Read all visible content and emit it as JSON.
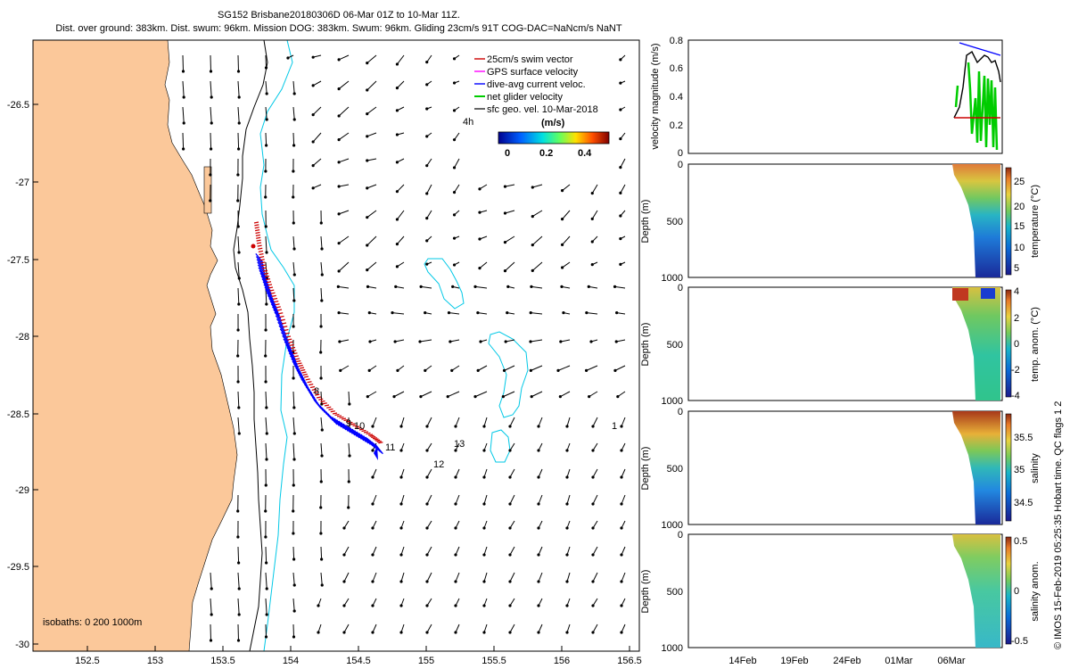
{
  "header": {
    "title_line1": "SG152 Brisbane20180306D 06-Mar 01Z to 10-Mar 11Z.",
    "title_line2": "Dist. over ground: 383km. Dist. swum: 96km. Mission DOG: 383km. Swum: 96km. Gliding 23cm/s 91T COG-DAC=NaNcm/s NaNT"
  },
  "map": {
    "lon_ticks": [
      "152.5",
      "153",
      "153.5",
      "154",
      "154.5",
      "155",
      "155.5",
      "156",
      "156.5"
    ],
    "lat_ticks": [
      "-26.5",
      "-27",
      "-27.5",
      "-28",
      "-28.5",
      "-29",
      "-29.5",
      "-30"
    ],
    "isobaths_label": "isobaths: 0   200  1000m",
    "legend": [
      {
        "label": "25cm/s swim vector",
        "color": "#cc0000"
      },
      {
        "label": "GPS surface velocity",
        "color": "#ff00ff"
      },
      {
        "label": "dive-avg current veloc.",
        "color": "#0000ff"
      },
      {
        "label": "net glider velocity",
        "color": "#00cc00"
      },
      {
        "label": "sfc geo. vel. 10-Mar-2018",
        "color": "#000000"
      }
    ],
    "legend_note": "4h",
    "colorbar_title": "(m/s)",
    "colorbar_ticks": [
      "0",
      "0.2",
      "0.4"
    ],
    "day_labels": [
      "8",
      "9",
      "10",
      "11",
      "12",
      "13",
      "1"
    ],
    "land_color": "#fbc89a",
    "isobath_200_color": "#000000",
    "isobath_1000_color": "#00c8e6"
  },
  "panels": {
    "velocity": {
      "ylabel": "velocity magnitude (m/s)",
      "yticks": [
        "0",
        "0.2",
        "0.4",
        "0.6",
        "0.8"
      ]
    },
    "temperature": {
      "ylabel": "Depth (m)",
      "cbar_label": "temperature (°C)",
      "cbar_ticks": [
        "25",
        "20",
        "15",
        "10",
        "5"
      ]
    },
    "temp_anom": {
      "ylabel": "Depth (m)",
      "cbar_label": "temp. anom. (°C)",
      "cbar_ticks": [
        "4",
        "2",
        "0",
        "-2",
        "-4"
      ]
    },
    "salinity": {
      "ylabel": "Depth (m)",
      "cbar_label": "salinity",
      "cbar_ticks": [
        "35.5",
        "35",
        "34.5"
      ]
    },
    "sal_anom": {
      "ylabel": "Depth (m)",
      "cbar_label": "salinity anom.",
      "cbar_ticks": [
        "0.5",
        "0",
        "-0.5"
      ]
    },
    "depth_ticks": [
      "0",
      "500",
      "1000"
    ],
    "time_ticks": [
      "14Feb",
      "19Feb",
      "24Feb",
      "01Mar",
      "06Mar"
    ]
  },
  "credit": "© IMOS 15-Feb-2019 05:25:35 Hobart time. QC flags 1  2"
}
